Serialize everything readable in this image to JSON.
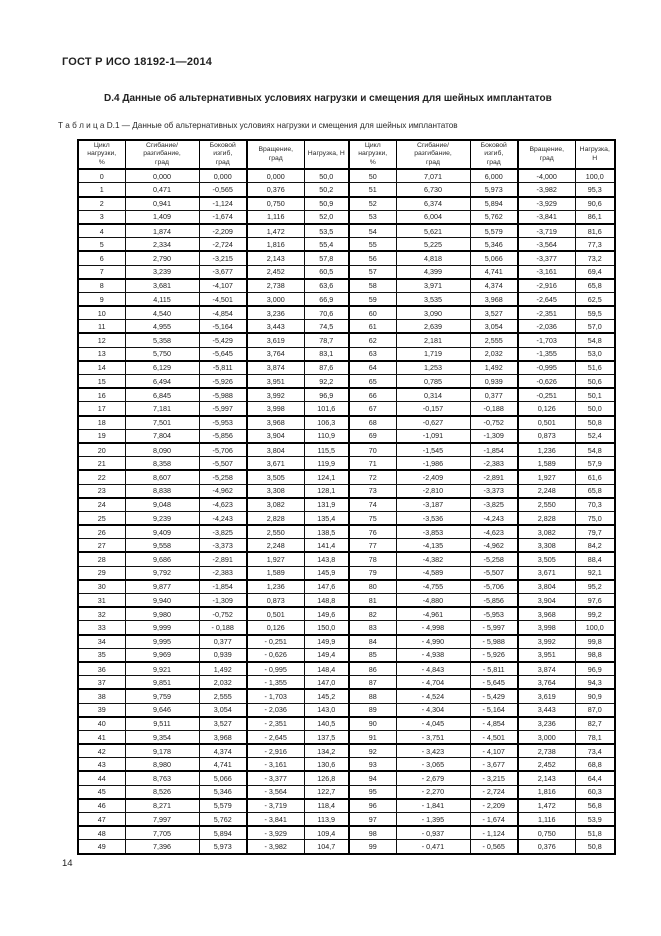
{
  "page": {
    "running_header": "ГОСТ Р ИСО 18192-1—2014",
    "section_title": "D.4 Данные об альтернативных условиях нагрузки и смещения для шейных имплантатов",
    "page_number": "14"
  },
  "table": {
    "caption": "Т а б л и ц а  D.1 — Данные об альтернативных условиях нагрузки и смещения для шейных имплантатов",
    "column_headers": [
      [
        "Цикл",
        "нагрузки,",
        "%"
      ],
      [
        "Сгибание/",
        "разгибание,",
        "град"
      ],
      [
        "Боковой",
        "изгиб,",
        "град"
      ],
      [
        "Вращение,",
        "град"
      ],
      [
        "Нагрузка, Н"
      ],
      [
        "Цикл",
        "нагрузки,",
        "%"
      ],
      [
        "Сгибание/",
        "разгибание,",
        "град"
      ],
      [
        "Боковой",
        "изгиб,",
        "град"
      ],
      [
        "Вращение,",
        "град"
      ],
      [
        "Нагрузка,",
        "Н"
      ]
    ],
    "rows": [
      [
        "0",
        "0,000",
        "0,000",
        "0,000",
        "50,0",
        "50",
        "7,071",
        "6,000",
        "-4,000",
        "100,0"
      ],
      [
        "1",
        "0,471",
        "-0,565",
        "0,376",
        "50,2",
        "51",
        "6,730",
        "5,973",
        "-3,982",
        "95,3"
      ],
      [
        "2",
        "0,941",
        "-1,124",
        "0,750",
        "50,9",
        "52",
        "6,374",
        "5,894",
        "-3,929",
        "90,6"
      ],
      [
        "3",
        "1,409",
        "-1,674",
        "1,116",
        "52,0",
        "53",
        "6,004",
        "5,762",
        "-3,841",
        "86,1"
      ],
      [
        "4",
        "1,874",
        "-2,209",
        "1,472",
        "53,5",
        "54",
        "5,621",
        "5,579",
        "-3,719",
        "81,6"
      ],
      [
        "5",
        "2,334",
        "-2,724",
        "1,816",
        "55,4",
        "55",
        "5,225",
        "5,346",
        "-3,564",
        "77,3"
      ],
      [
        "6",
        "2,790",
        "-3,215",
        "2,143",
        "57,8",
        "56",
        "4,818",
        "5,066",
        "-3,377",
        "73,2"
      ],
      [
        "7",
        "3,239",
        "-3,677",
        "2,452",
        "60,5",
        "57",
        "4,399",
        "4,741",
        "-3,161",
        "69,4"
      ],
      [
        "8",
        "3,681",
        "-4,107",
        "2,738",
        "63,6",
        "58",
        "3,971",
        "4,374",
        "-2,916",
        "65,8"
      ],
      [
        "9",
        "4,115",
        "-4,501",
        "3,000",
        "66,9",
        "59",
        "3,535",
        "3,968",
        "-2,645",
        "62,5"
      ],
      [
        "10",
        "4,540",
        "-4,854",
        "3,236",
        "70,6",
        "60",
        "3,090",
        "3,527",
        "-2,351",
        "59,5"
      ],
      [
        "11",
        "4,955",
        "-5,164",
        "3,443",
        "74,5",
        "61",
        "2,639",
        "3,054",
        "-2,036",
        "57,0"
      ],
      [
        "12",
        "5,358",
        "-5,429",
        "3,619",
        "78,7",
        "62",
        "2,181",
        "2,555",
        "-1,703",
        "54,8"
      ],
      [
        "13",
        "5,750",
        "-5,645",
        "3,764",
        "83,1",
        "63",
        "1,719",
        "2,032",
        "-1,355",
        "53,0"
      ],
      [
        "14",
        "6,129",
        "-5,811",
        "3,874",
        "87,6",
        "64",
        "1,253",
        "1,492",
        "-0,995",
        "51,6"
      ],
      [
        "15",
        "6,494",
        "-5,926",
        "3,951",
        "92,2",
        "65",
        "0,785",
        "0,939",
        "-0,626",
        "50,6"
      ],
      [
        "16",
        "6,845",
        "-5,988",
        "3,992",
        "96,9",
        "66",
        "0,314",
        "0,377",
        "-0,251",
        "50,1"
      ],
      [
        "17",
        "7,181",
        "-5,997",
        "3,998",
        "101,6",
        "67",
        "-0,157",
        "-0,188",
        "0,126",
        "50,0"
      ],
      [
        "18",
        "7,501",
        "-5,953",
        "3,968",
        "106,3",
        "68",
        "-0,627",
        "-0,752",
        "0,501",
        "50,8"
      ],
      [
        "19",
        "7,804",
        "-5,856",
        "3,904",
        "110,9",
        "69",
        "-1,091",
        "-1,309",
        "0,873",
        "52,4"
      ],
      [
        "20",
        "8,090",
        "-5,706",
        "3,804",
        "115,5",
        "70",
        "-1,545",
        "-1,854",
        "1,236",
        "54,8"
      ],
      [
        "21",
        "8,358",
        "-5,507",
        "3,671",
        "119,9",
        "71",
        "-1,986",
        "-2,383",
        "1,589",
        "57,9"
      ],
      [
        "22",
        "8,607",
        "-5,258",
        "3,505",
        "124,1",
        "72",
        "-2,409",
        "-2,891",
        "1,927",
        "61,6"
      ],
      [
        "23",
        "8,838",
        "-4,962",
        "3,308",
        "128,1",
        "73",
        "-2,810",
        "-3,373",
        "2,248",
        "65,8"
      ],
      [
        "24",
        "9,048",
        "-4,623",
        "3,082",
        "131,9",
        "74",
        "-3,187",
        "-3,825",
        "2,550",
        "70,3"
      ],
      [
        "25",
        "9,239",
        "-4,243",
        "2,828",
        "135,4",
        "75",
        "-3,536",
        "-4,243",
        "2,828",
        "75,0"
      ],
      [
        "26",
        "9,409",
        "-3,825",
        "2,550",
        "138,5",
        "76",
        "-3,853",
        "-4,623",
        "3,082",
        "79,7"
      ],
      [
        "27",
        "9,558",
        "-3,373",
        "2,248",
        "141,4",
        "77",
        "-4,135",
        "-4,962",
        "3,308",
        "84,2"
      ],
      [
        "28",
        "9,686",
        "-2,891",
        "1,927",
        "143,8",
        "78",
        "-4,382",
        "-5,258",
        "3,505",
        "88,4"
      ],
      [
        "29",
        "9,792",
        "-2,383",
        "1,589",
        "145,9",
        "79",
        "-4,589",
        "-5,507",
        "3,671",
        "92,1"
      ],
      [
        "30",
        "9,877",
        "-1,854",
        "1,236",
        "147,6",
        "80",
        "-4,755",
        "-5,706",
        "3,804",
        "95,2"
      ],
      [
        "31",
        "9,940",
        "-1,309",
        "0,873",
        "148,8",
        "81",
        "-4,880",
        "-5,856",
        "3,904",
        "97,6"
      ],
      [
        "32",
        "9,980",
        "-0,752",
        "0,501",
        "149,6",
        "82",
        "-4,961",
        "-5,953",
        "3,968",
        "99,2"
      ],
      [
        "33",
        "9,999",
        "- 0,188",
        "0,126",
        "150,0",
        "83",
        "- 4,998",
        "- 5,997",
        "3,998",
        "100,0"
      ],
      [
        "34",
        "9,995",
        "0,377",
        "- 0,251",
        "149,9",
        "84",
        "- 4,990",
        "- 5,988",
        "3,992",
        "99,8"
      ],
      [
        "35",
        "9,969",
        "0,939",
        "- 0,626",
        "149,4",
        "85",
        "- 4,938",
        "- 5,926",
        "3,951",
        "98,8"
      ],
      [
        "36",
        "9,921",
        "1,492",
        "- 0,995",
        "148,4",
        "86",
        "- 4,843",
        "- 5,811",
        "3,874",
        "96,9"
      ],
      [
        "37",
        "9,851",
        "2,032",
        "- 1,355",
        "147,0",
        "87",
        "- 4,704",
        "- 5,645",
        "3,764",
        "94,3"
      ],
      [
        "38",
        "9,759",
        "2,555",
        "- 1,703",
        "145,2",
        "88",
        "- 4,524",
        "- 5,429",
        "3,619",
        "90,9"
      ],
      [
        "39",
        "9,646",
        "3,054",
        "- 2,036",
        "143,0",
        "89",
        "- 4,304",
        "- 5,164",
        "3,443",
        "87,0"
      ],
      [
        "40",
        "9,511",
        "3,527",
        "- 2,351",
        "140,5",
        "90",
        "- 4,045",
        "- 4,854",
        "3,236",
        "82,7"
      ],
      [
        "41",
        "9,354",
        "3,968",
        "- 2,645",
        "137,5",
        "91",
        "- 3,751",
        "- 4,501",
        "3,000",
        "78,1"
      ],
      [
        "42",
        "9,178",
        "4,374",
        "- 2,916",
        "134,2",
        "92",
        "- 3,423",
        "- 4,107",
        "2,738",
        "73,4"
      ],
      [
        "43",
        "8,980",
        "4,741",
        "- 3,161",
        "130,6",
        "93",
        "- 3,065",
        "- 3,677",
        "2,452",
        "68,8"
      ],
      [
        "44",
        "8,763",
        "5,066",
        "- 3,377",
        "126,8",
        "94",
        "- 2,679",
        "- 3,215",
        "2,143",
        "64,4"
      ],
      [
        "45",
        "8,526",
        "5,346",
        "- 3,564",
        "122,7",
        "95",
        "- 2,270",
        "- 2,724",
        "1,816",
        "60,3"
      ],
      [
        "46",
        "8,271",
        "5,579",
        "- 3,719",
        "118,4",
        "96",
        "- 1,841",
        "- 2,209",
        "1,472",
        "56,8"
      ],
      [
        "47",
        "7,997",
        "5,762",
        "- 3,841",
        "113,9",
        "97",
        "- 1,395",
        "- 1,674",
        "1,116",
        "53,9"
      ],
      [
        "48",
        "7,705",
        "5,894",
        "- 3,929",
        "109,4",
        "98",
        "- 0,937",
        "- 1,124",
        "0,750",
        "51,8"
      ],
      [
        "49",
        "7,396",
        "5,973",
        "- 3,982",
        "104,7",
        "99",
        "- 0,471",
        "- 0,565",
        "0,376",
        "50,8"
      ]
    ]
  }
}
